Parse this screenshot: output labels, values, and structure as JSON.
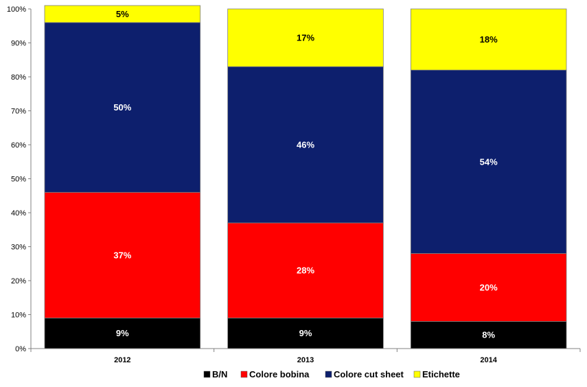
{
  "chart_data": {
    "type": "bar",
    "stacked": true,
    "percent_stacked": true,
    "categories": [
      "2012",
      "2013",
      "2014"
    ],
    "series": [
      {
        "name": "B/N",
        "color": "#000000",
        "label_color": "#ffffff",
        "values": [
          9,
          9,
          8
        ],
        "labels": [
          "9%",
          "9%",
          "8%"
        ]
      },
      {
        "name": "Colore bobina",
        "color": "#ff0000",
        "label_color": "#ffffff",
        "values": [
          37,
          28,
          20
        ],
        "labels": [
          "37%",
          "28%",
          "20%"
        ]
      },
      {
        "name": "Colore cut sheet",
        "color": "#0d1f6d",
        "label_color": "#ffffff",
        "values": [
          50,
          46,
          54
        ],
        "labels": [
          "50%",
          "46%",
          "54%"
        ]
      },
      {
        "name": "Etichette",
        "color": "#ffff00",
        "label_color": "#000000",
        "values": [
          5,
          17,
          18
        ],
        "labels": [
          "5%",
          "17%",
          "18%"
        ]
      }
    ],
    "yticks": [
      "0%",
      "10%",
      "20%",
      "30%",
      "40%",
      "50%",
      "60%",
      "70%",
      "80%",
      "90%",
      "100%"
    ],
    "ylim": [
      0,
      100
    ],
    "grid": false,
    "legend_position": "bottom"
  }
}
